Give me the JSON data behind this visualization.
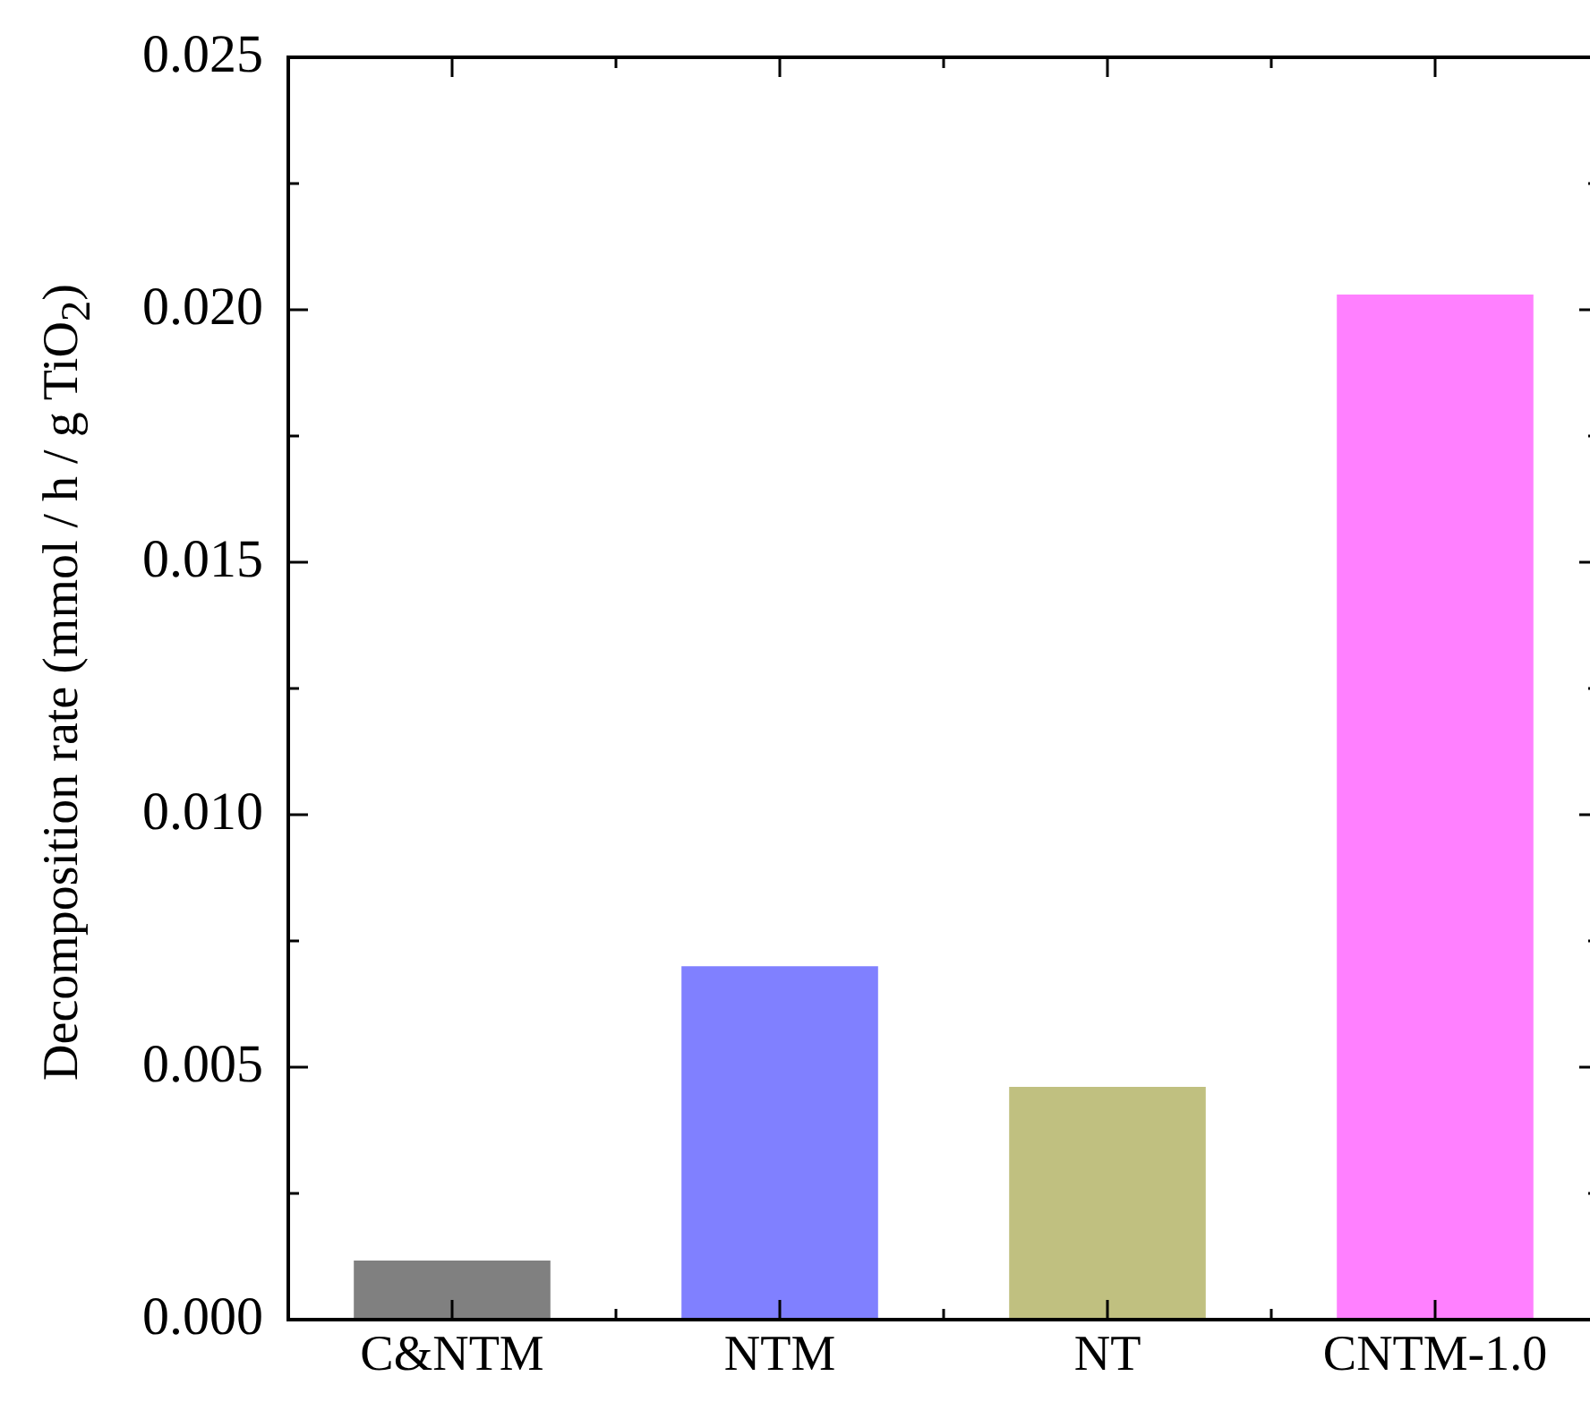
{
  "chart_data": {
    "type": "bar",
    "ylabel": "Decomposition rate (mmol / h / g TiO$_{2}$)",
    "categories": [
      "C&NTM",
      "NTM",
      "NT",
      "CNTM-1.0"
    ],
    "values": [
      0.00117,
      0.007,
      0.00461,
      0.0203
    ],
    "colors": [
      "#808080",
      "#8080ff",
      "#c0c080",
      "#ff80ff"
    ],
    "ylim": [
      0,
      0.025
    ],
    "yticks": [
      {
        "value": 0,
        "label": "0.000"
      },
      {
        "value": 0.0025,
        "label": null
      },
      0.005,
      {
        "value": 0.0075,
        "label": null
      },
      {
        "value": 0.01,
        "label": "0.010"
      },
      {
        "value": 0.0125,
        "label": null
      },
      0.015,
      {
        "value": 0.0175,
        "label": null
      },
      {
        "value": 0.02,
        "label": "0.020"
      },
      {
        "value": 0.0225,
        "label": null
      },
      0.025
    ],
    "grid": false,
    "legend": false
  }
}
